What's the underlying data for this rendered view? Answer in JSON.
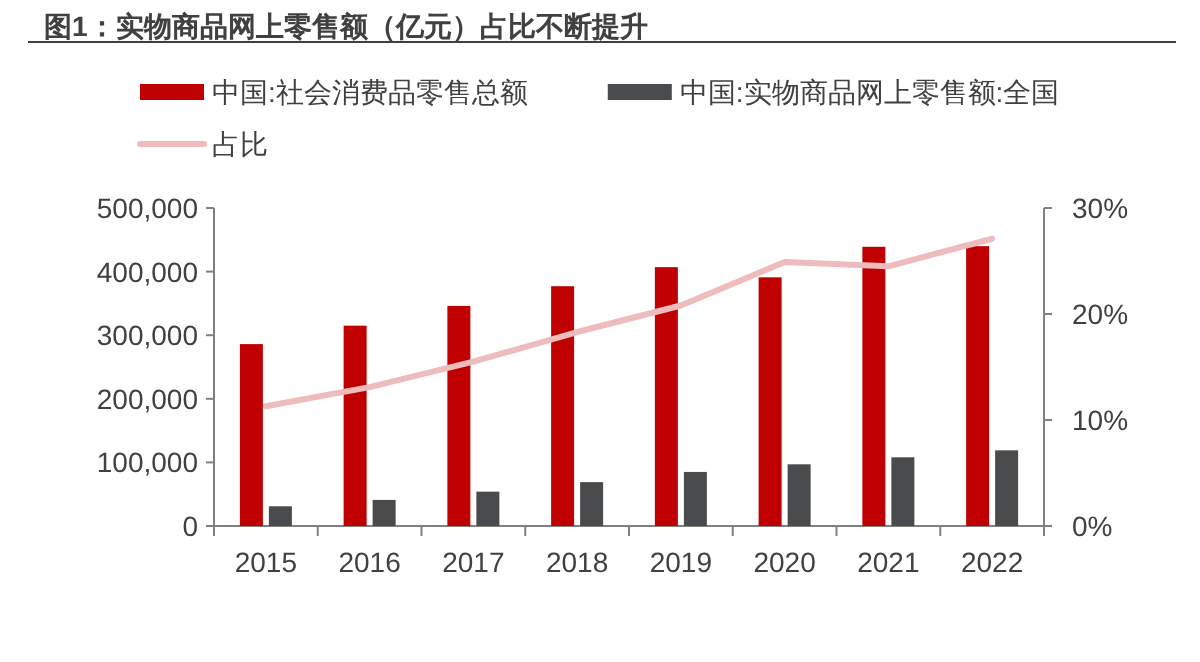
{
  "chart_data": {
    "type": "bar",
    "title": "图1：实物商品网上零售额（亿元）占比不断提升",
    "categories": [
      "2015",
      "2016",
      "2017",
      "2018",
      "2019",
      "2020",
      "2021",
      "2022"
    ],
    "series": [
      {
        "name": "中国:社会消费品零售总额",
        "color": "#c00000",
        "values": [
          286000,
          315000,
          346000,
          377000,
          407000,
          391000,
          439000,
          440000
        ]
      },
      {
        "name": "中国:实物商品网上零售额:全国",
        "color": "#4a4b4d",
        "values": [
          31000,
          41000,
          54000,
          69000,
          85000,
          97000,
          108000,
          119000
        ]
      },
      {
        "name": "占比",
        "type": "line",
        "axis": "y2",
        "color": "#eebcbc",
        "values": [
          11.3,
          13.1,
          15.5,
          18.3,
          20.8,
          24.9,
          24.5,
          27.1
        ]
      }
    ],
    "ylim": [
      0,
      500000
    ],
    "yticks": [
      {
        "value": 0,
        "label": "0"
      },
      {
        "value": 100000,
        "label": "100,000"
      },
      {
        "value": 200000,
        "label": "200,000"
      },
      {
        "value": 300000,
        "label": "300,000"
      },
      {
        "value": 400000,
        "label": "400,000"
      },
      {
        "value": 500000,
        "label": "500,000"
      }
    ],
    "y2lim": [
      0,
      30
    ],
    "y2ticks": [
      {
        "value": 0,
        "label": "0%"
      },
      {
        "value": 10,
        "label": "10%"
      },
      {
        "value": 20,
        "label": "20%"
      },
      {
        "value": 30,
        "label": "30%"
      }
    ],
    "legend": "top",
    "grid": false,
    "marker": "none",
    "line_style": "solid"
  }
}
